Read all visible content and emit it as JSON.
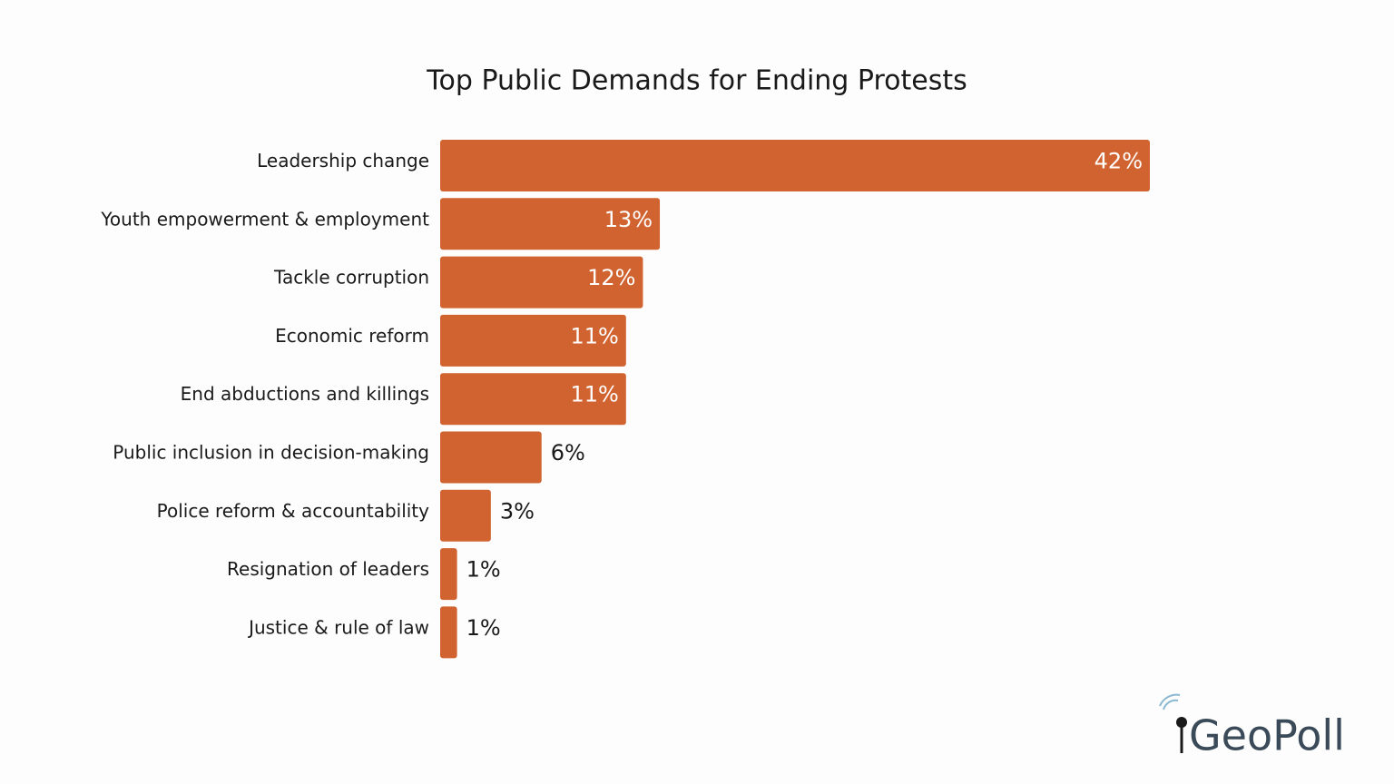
{
  "chart_data": {
    "type": "hbar",
    "title": "Top Public Demands for Ending Protests",
    "categories": [
      "Leadership change",
      "Youth empowerment & employment",
      "Tackle corruption",
      "Economic reform",
      "End abductions and killings",
      "Public inclusion in decision-making",
      "Police reform & accountability",
      "Resignation of leaders",
      "Justice & rule of law"
    ],
    "values": [
      42,
      13,
      12,
      11,
      11,
      6,
      3,
      1,
      1
    ],
    "value_labels": [
      "42%",
      "13%",
      "12%",
      "11%",
      "11%",
      "6%",
      "3%",
      "1%",
      "1%"
    ],
    "color": "#d0632f"
  },
  "brand": "GeoPoll"
}
